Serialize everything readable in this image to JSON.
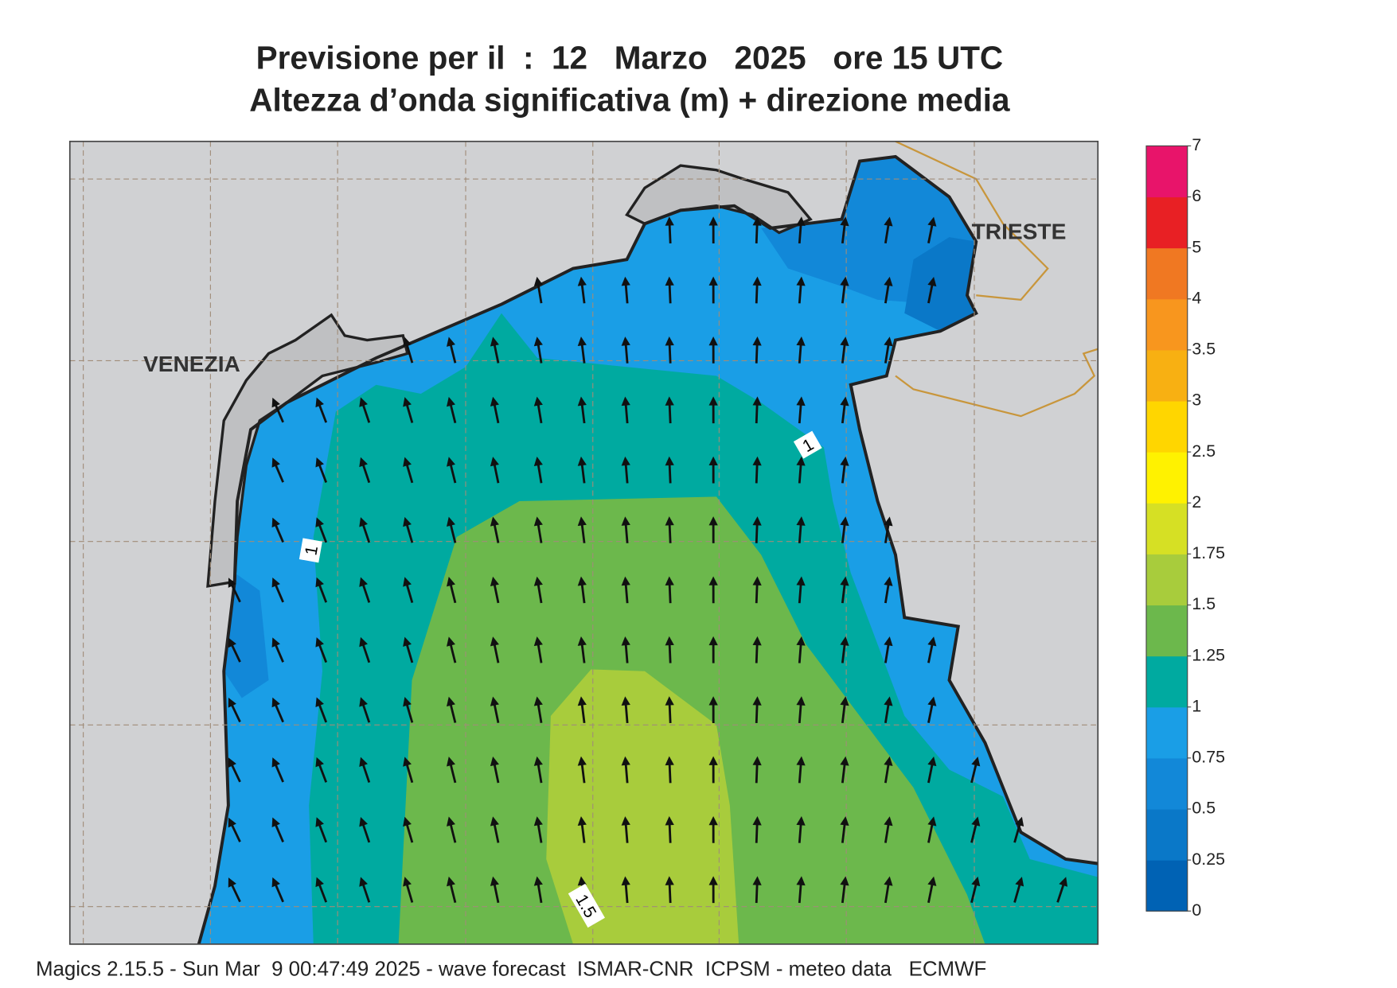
{
  "header": {
    "title": "Previsione per il  :  12   Marzo   2025   ore 15 UTC",
    "subtitle": "Altezza d’onda significativa (m) + direzione media"
  },
  "map": {
    "cities": [
      "VENEZIA",
      "TRIESTE"
    ],
    "contour_labels": [
      "1",
      "1",
      "1.5"
    ]
  },
  "colorbar": {
    "ticks": [
      0,
      0.25,
      0.5,
      0.75,
      1,
      1.25,
      1.5,
      1.75,
      2,
      2.5,
      3,
      3.5,
      4,
      5,
      6,
      7
    ],
    "colors": [
      "#0062b4",
      "#0a78c8",
      "#1288d8",
      "#1a9ee6",
      "#00aaa0",
      "#6cb84c",
      "#a8cc3c",
      "#d6e024",
      "#fff200",
      "#ffd600",
      "#f8b012",
      "#f8961e",
      "#f07822",
      "#e82024",
      "#e8146a"
    ]
  },
  "footer": "Magics 2.15.5 - Sun Mar  9 00:47:49 2025 - wave forecast  ISMAR-CNR  ICPSM - meteo data   ECMWF"
}
